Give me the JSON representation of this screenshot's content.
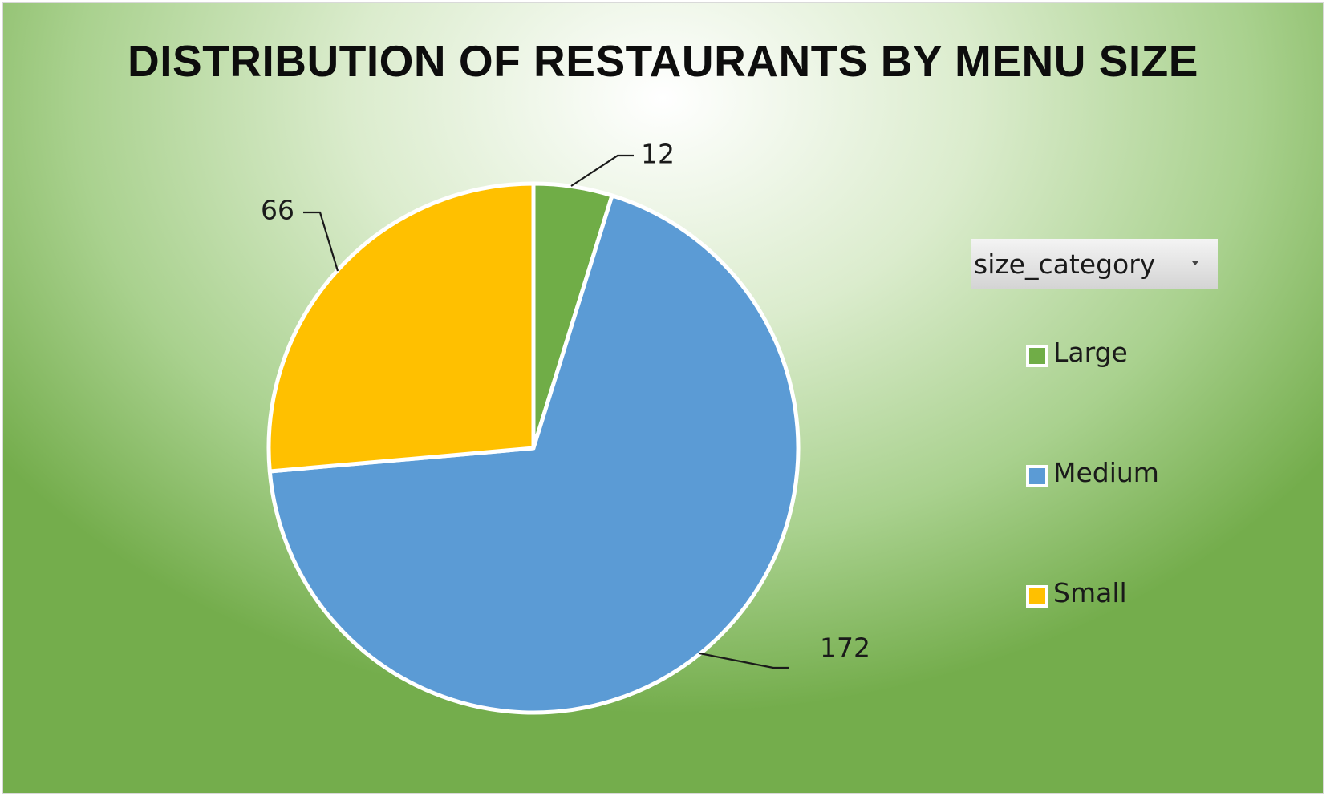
{
  "chart_data": {
    "type": "pie",
    "title": "DISTRIBUTION OF RESTAURANTS BY MENU SIZE",
    "categories": [
      "Large",
      "Medium",
      "Small"
    ],
    "values": [
      12,
      172,
      66
    ],
    "colors": [
      "#70AD47",
      "#5B9BD5",
      "#FFC000"
    ],
    "data_labels": [
      "12",
      "172",
      "66"
    ],
    "legend": {
      "placement": "right",
      "field_button": "size_category",
      "entries": [
        "Large",
        "Medium",
        "Small"
      ]
    }
  }
}
